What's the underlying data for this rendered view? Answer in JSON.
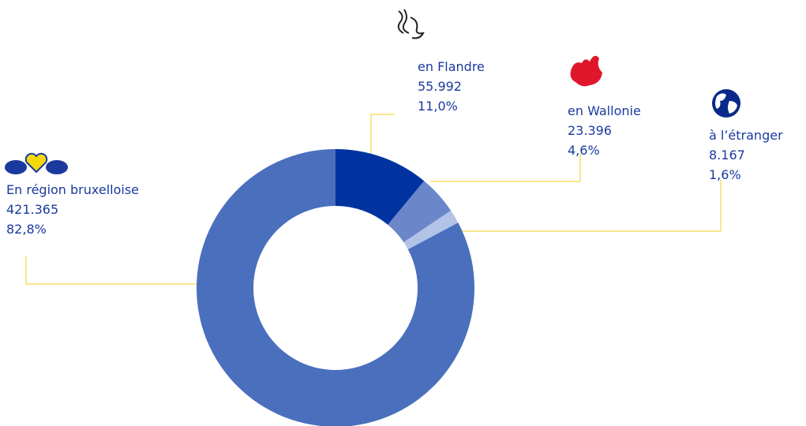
{
  "chart_data": {
    "type": "donut",
    "categories": [
      "en Flandre",
      "en Wallonie",
      "à l’étranger",
      "En région bruxelloise"
    ],
    "values": [
      55992,
      23396,
      8167,
      421365
    ],
    "value_labels": [
      "55.992",
      "23.396",
      "8.167",
      "421.365"
    ],
    "percentages": [
      11.0,
      4.6,
      1.6,
      82.8
    ],
    "percentage_labels": [
      "11,0%",
      "4,6%",
      "1,6%",
      "82,8%"
    ],
    "colors": [
      "#0033a0",
      "#6b86c9",
      "#b3c3e8",
      "#4a6fbd"
    ]
  }
}
